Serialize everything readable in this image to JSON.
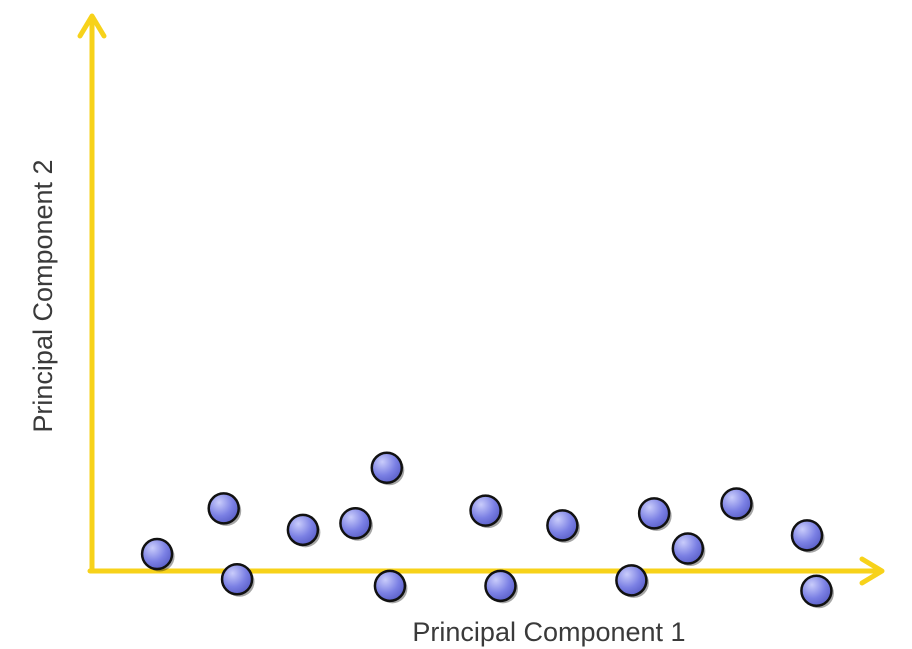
{
  "chart_data": {
    "type": "scatter",
    "title": "",
    "xlabel": "Principal Component 1",
    "ylabel": "Principal Component 2",
    "xlim": [
      0,
      100
    ],
    "ylim": [
      -3,
      100
    ],
    "grid": false,
    "legend": "none",
    "series": [
      {
        "name": "",
        "color": "#7b80e4",
        "x": [
          8.3,
          16.8,
          18.5,
          26.9,
          33.6,
          37.6,
          38.0,
          50.2,
          52.1,
          60.0,
          68.8,
          71.7,
          76.0,
          82.2,
          91.2,
          92.4
        ],
        "y": [
          3.1,
          11.4,
          -1.5,
          7.5,
          8.7,
          18.8,
          -2.7,
          11.0,
          -2.7,
          8.3,
          -1.7,
          10.5,
          4.1,
          12.3,
          6.5,
          -3.6
        ]
      }
    ],
    "colors": {
      "axis": "#f7d21a",
      "point_fill": "#7b80e4",
      "point_highlight": "#c9ccfb",
      "point_outline": "#111111",
      "text": "#3a3a3a"
    }
  }
}
